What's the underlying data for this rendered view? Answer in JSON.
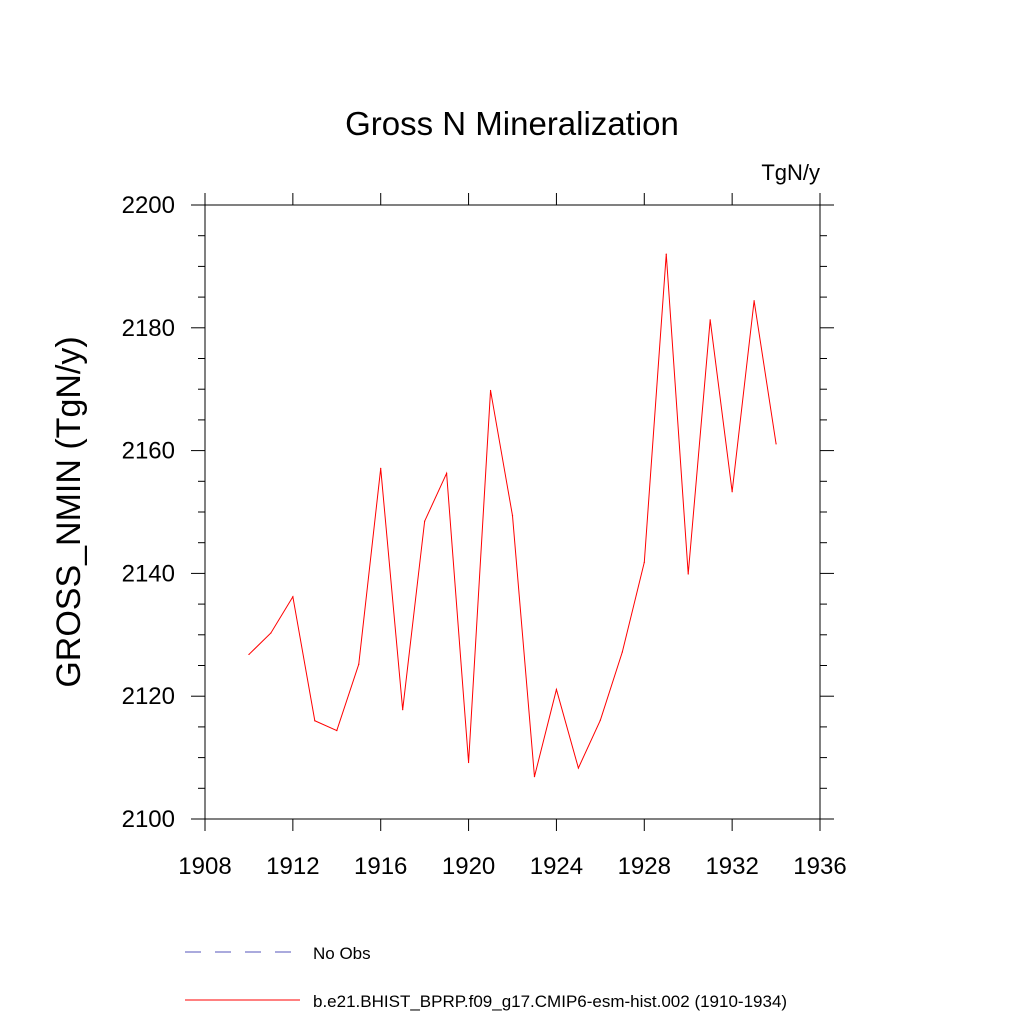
{
  "chart_data": {
    "type": "line",
    "title": "Gross N Mineralization",
    "units_label": "TgN/y",
    "xlabel": "",
    "ylabel": "GROSS_NMIN  (TgN/y)",
    "xlim": [
      1908,
      1936
    ],
    "ylim": [
      2100,
      2200
    ],
    "x_ticks": [
      1908,
      1912,
      1916,
      1920,
      1924,
      1928,
      1932,
      1936
    ],
    "y_ticks": [
      2100,
      2120,
      2140,
      2160,
      2180,
      2200
    ],
    "series": [
      {
        "name": "b.e21.BHIST_BPRP.f09_g17.CMIP6-esm-hist.002 (1910-1934)",
        "color": "#ff0000",
        "style": "solid",
        "x": [
          1910,
          1911,
          1912,
          1913,
          1914,
          1915,
          1916,
          1917,
          1918,
          1919,
          1920,
          1921,
          1922,
          1923,
          1924,
          1925,
          1926,
          1927,
          1928,
          1929,
          1930,
          1931,
          1932,
          1933,
          1934
        ],
        "y": [
          2126.8,
          2130.3,
          2136.2,
          2116.0,
          2114.4,
          2125.2,
          2157.1,
          2117.8,
          2148.5,
          2156.3,
          2109.2,
          2169.8,
          2149.4,
          2106.9,
          2121.1,
          2108.3,
          2116.1,
          2127.2,
          2141.8,
          2192.0,
          2139.9,
          2181.3,
          2153.3,
          2184.4,
          2161.1
        ]
      }
    ],
    "legend": [
      {
        "label": "No Obs",
        "color": "#5555bb",
        "style": "dashed"
      },
      {
        "label": "b.e21.BHIST_BPRP.f09_g17.CMIP6-esm-hist.002 (1910-1934)",
        "color": "#ff0000",
        "style": "solid"
      }
    ]
  }
}
